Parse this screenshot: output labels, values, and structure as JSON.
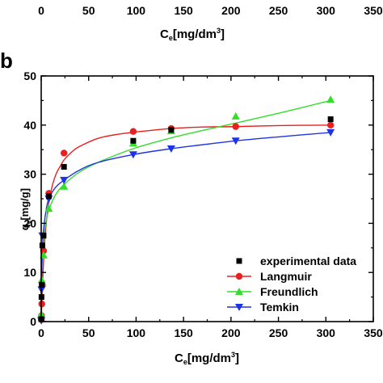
{
  "top_panel": {
    "xticks": [
      "0",
      "50",
      "100",
      "150",
      "200",
      "250",
      "300",
      "350"
    ],
    "xlabel_main": "C",
    "xlabel_sub": "e",
    "xlabel_unit": "[mg/dm",
    "xlabel_sup": "3",
    "xlabel_close": "]"
  },
  "chart_data": {
    "type": "scatter",
    "panel_label": "b",
    "xlabel_main": "C",
    "xlabel_sub": "e",
    "xlabel_unit": "[mg/dm",
    "xlabel_sup": "3",
    "xlabel_close": "]",
    "ylabel_main": "q",
    "ylabel_sub": "e",
    "ylabel_unit": "[mg/g]",
    "xlim": [
      0,
      350
    ],
    "ylim": [
      0,
      50
    ],
    "xticks": [
      0,
      50,
      100,
      150,
      200,
      250,
      300,
      350
    ],
    "yticks": [
      0,
      10,
      20,
      30,
      40,
      50
    ],
    "grid": false,
    "legend_position": "bottom-right",
    "series": [
      {
        "name": "experimental data",
        "marker": "square",
        "color": "#000000",
        "line": false,
        "x": [
          0.1,
          0.3,
          0.6,
          1.2,
          2.5,
          8,
          24,
          97,
          137,
          305
        ],
        "y": [
          0.5,
          5,
          7.5,
          15.5,
          17.5,
          25.5,
          31.5,
          36.8,
          39,
          41.2
        ]
      },
      {
        "name": "Langmuir",
        "marker": "circle",
        "color": "#e8201e",
        "line": true,
        "x": [
          0.1,
          0.3,
          0.6,
          1.2,
          2.5,
          8,
          24,
          97,
          137,
          205,
          305
        ],
        "y": [
          0.4,
          1.2,
          3.6,
          7.4,
          14.4,
          26.1,
          34.3,
          38.7,
          39.3,
          39.7,
          40.0
        ],
        "curve_x": [
          0,
          1,
          2,
          4,
          6,
          8,
          12,
          16,
          20,
          24,
          32,
          40,
          60,
          80,
          100,
          137,
          170,
          205,
          250,
          305
        ],
        "curve_y": [
          0,
          5.5,
          10.5,
          17.2,
          21.3,
          24.2,
          27.9,
          30.2,
          31.6,
          32.9,
          34.5,
          35.6,
          37.3,
          38.1,
          38.6,
          39.3,
          39.6,
          39.7,
          39.9,
          40.0
        ]
      },
      {
        "name": "Freundlich",
        "marker": "triangle-up",
        "color": "#33dd2a",
        "line": true,
        "x": [
          0.1,
          0.6,
          2.5,
          8,
          24,
          97,
          137,
          205,
          305
        ],
        "y": [
          1.5,
          8.5,
          13.5,
          23.0,
          27.5,
          36.3,
          38.8,
          41.8,
          45.2
        ],
        "curve_x": [
          0,
          0.5,
          1,
          2.5,
          5,
          8,
          15,
          24,
          40,
          60,
          97,
          137,
          170,
          205,
          250,
          305
        ],
        "curve_y": [
          0,
          9.5,
          12.5,
          16.8,
          20.3,
          22.7,
          25.8,
          27.9,
          30.4,
          32.4,
          35.2,
          37.4,
          38.9,
          40.4,
          42.4,
          45.0
        ]
      },
      {
        "name": "Temkin",
        "marker": "triangle-down",
        "color": "#1e33e6",
        "line": true,
        "x": [
          0.1,
          0.3,
          1.2,
          8,
          24,
          97,
          137,
          205,
          305
        ],
        "y": [
          0.2,
          6.5,
          17.5,
          25.0,
          28.8,
          34.0,
          35.2,
          36.8,
          38.5
        ],
        "curve_x": [
          0.05,
          0.1,
          0.3,
          0.6,
          1.2,
          2.5,
          5,
          8,
          15,
          24,
          40,
          60,
          97,
          137,
          170,
          205,
          250,
          305
        ],
        "curve_y": [
          0,
          0.7,
          6.5,
          10.5,
          14.5,
          18.7,
          22.5,
          25.0,
          27.3,
          28.8,
          30.8,
          32.4,
          34.0,
          35.2,
          36.0,
          36.8,
          37.6,
          38.5
        ]
      }
    ]
  }
}
